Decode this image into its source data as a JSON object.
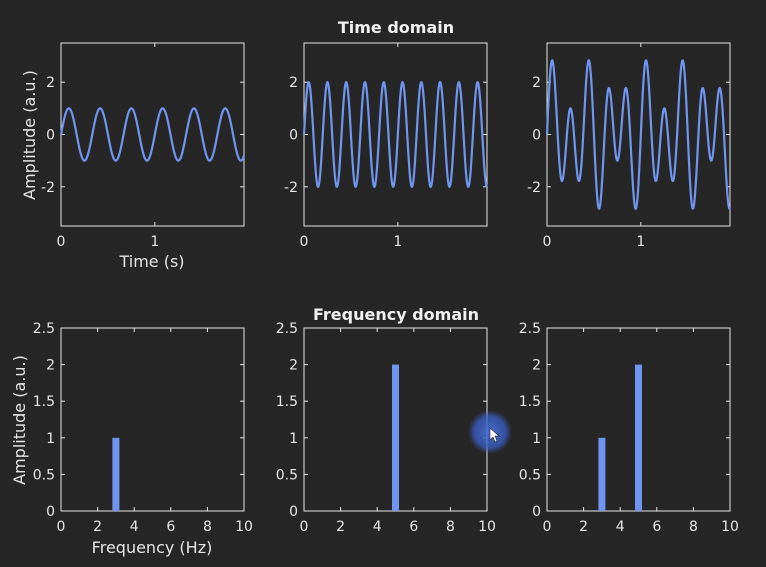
{
  "colors": {
    "background": "#262626",
    "axes": "#e6e6e6",
    "series": "#6f95f0",
    "cursor": "#3a5fc7"
  },
  "headings": {
    "time": "Time domain",
    "frequency": "Frequency domain"
  },
  "labels": {
    "time_ylabel": "Amplitude (a.u.)",
    "time_xlabel": "Time (s)",
    "freq_ylabel": "Amplitude (a.u.)",
    "freq_xlabel": "Frequency (Hz)"
  },
  "chart_data": [
    {
      "type": "line",
      "title": "",
      "xlabel": "Time (s)",
      "ylabel": "Amplitude (a.u.)",
      "xlim": [
        0,
        1.95
      ],
      "ylim": [
        -3.5,
        3.5
      ],
      "xticks": [
        0,
        1
      ],
      "yticks": [
        -2,
        0,
        2
      ],
      "grid": false,
      "legend": "none",
      "series": [
        {
          "components": [
            {
              "freq_hz": 3,
              "amplitude": 1
            }
          ]
        }
      ]
    },
    {
      "type": "line",
      "title": "",
      "xlabel": "",
      "ylabel": "",
      "xlim": [
        0,
        1.95
      ],
      "ylim": [
        -3.5,
        3.5
      ],
      "xticks": [
        0,
        1
      ],
      "yticks": [
        -2,
        0,
        2
      ],
      "grid": false,
      "legend": "none",
      "series": [
        {
          "components": [
            {
              "freq_hz": 5,
              "amplitude": 2
            }
          ]
        }
      ]
    },
    {
      "type": "line",
      "title": "",
      "xlabel": "",
      "ylabel": "",
      "xlim": [
        0,
        1.95
      ],
      "ylim": [
        -3.5,
        3.5
      ],
      "xticks": [
        0,
        1
      ],
      "yticks": [
        -2,
        0,
        2
      ],
      "grid": false,
      "legend": "none",
      "series": [
        {
          "components": [
            {
              "freq_hz": 3,
              "amplitude": 1
            },
            {
              "freq_hz": 5,
              "amplitude": 2
            }
          ]
        }
      ]
    },
    {
      "type": "bar",
      "title": "",
      "xlabel": "Frequency (Hz)",
      "ylabel": "Amplitude (a.u.)",
      "xlim": [
        0,
        10
      ],
      "ylim": [
        0,
        2.5
      ],
      "xticks": [
        0,
        2,
        4,
        6,
        8,
        10
      ],
      "yticks": [
        0,
        0.5,
        1,
        1.5,
        2,
        2.5
      ],
      "grid": false,
      "legend": "none",
      "bars": [
        {
          "x": 3,
          "value": 1
        }
      ]
    },
    {
      "type": "bar",
      "title": "",
      "xlabel": "",
      "ylabel": "",
      "xlim": [
        0,
        10
      ],
      "ylim": [
        0,
        2.5
      ],
      "xticks": [
        0,
        2,
        4,
        6,
        8,
        10
      ],
      "yticks": [
        0,
        0.5,
        1,
        1.5,
        2,
        2.5
      ],
      "grid": false,
      "legend": "none",
      "bars": [
        {
          "x": 5,
          "value": 2
        }
      ]
    },
    {
      "type": "bar",
      "title": "",
      "xlabel": "",
      "ylabel": "",
      "xlim": [
        0,
        10
      ],
      "ylim": [
        0,
        2.5
      ],
      "xticks": [
        0,
        2,
        4,
        6,
        8,
        10
      ],
      "yticks": [
        0,
        0.5,
        1,
        1.5,
        2,
        2.5
      ],
      "grid": false,
      "legend": "none",
      "bars": [
        {
          "x": 3,
          "value": 1
        },
        {
          "x": 5,
          "value": 2
        }
      ]
    }
  ]
}
